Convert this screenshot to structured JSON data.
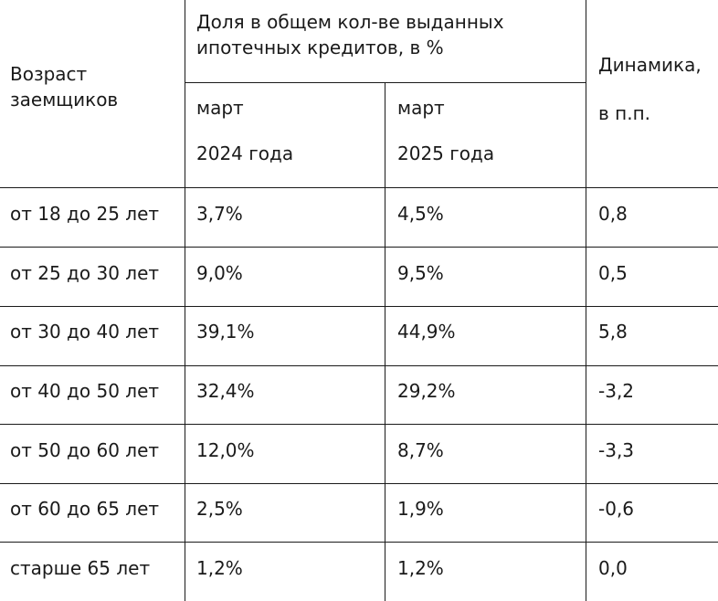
{
  "header": {
    "age_col": [
      "Возраст",
      "заемщиков"
    ],
    "share_title": [
      "Доля в общем кол-ве выданных",
      "ипотечных кредитов, в %"
    ],
    "march2024": [
      "март",
      "2024 года"
    ],
    "march2025": [
      "март",
      "2025 года"
    ],
    "dynamics": [
      "Динамика,",
      "в п.п."
    ]
  },
  "rows": [
    {
      "age": "от 18 до 25 лет",
      "y2024": "3,7%",
      "y2025": "4,5%",
      "delta": "0,8"
    },
    {
      "age": "от 25 до 30 лет",
      "y2024": "9,0%",
      "y2025": "9,5%",
      "delta": "0,5"
    },
    {
      "age": "от 30 до 40 лет",
      "y2024": "39,1%",
      "y2025": "44,9%",
      "delta": "5,8"
    },
    {
      "age": "от 40 до 50 лет",
      "y2024": "32,4%",
      "y2025": "29,2%",
      "delta": "-3,2"
    },
    {
      "age": "от 50 до 60 лет",
      "y2024": "12,0%",
      "y2025": "8,7%",
      "delta": "-3,3"
    },
    {
      "age": "от 60 до 65 лет",
      "y2024": "2,5%",
      "y2025": "1,9%",
      "delta": "-0,6"
    },
    {
      "age": "старше 65 лет",
      "y2024": "1,2%",
      "y2025": "1,2%",
      "delta": "0,0"
    }
  ]
}
